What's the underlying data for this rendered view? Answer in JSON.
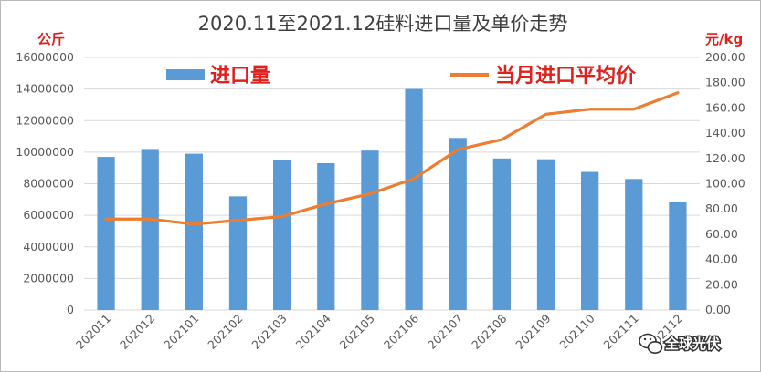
{
  "chart_data": {
    "type": "bar",
    "title": "2020.11至2021.12硅料进口量及单价走势",
    "categories": [
      "202011",
      "202012",
      "202101",
      "202102",
      "202103",
      "202104",
      "202105",
      "202106",
      "202107",
      "202108",
      "202109",
      "202110",
      "202111",
      "202112"
    ],
    "series": [
      {
        "name": "进口量",
        "type": "bar",
        "axis": "left",
        "color": "#5b9bd5",
        "values": [
          9700000,
          10200000,
          9900000,
          7200000,
          9500000,
          9300000,
          10100000,
          14000000,
          10900000,
          9600000,
          9550000,
          8750000,
          8300000,
          6850000
        ]
      },
      {
        "name": "当月进口平均价",
        "type": "line",
        "axis": "right",
        "color": "#ed7d31",
        "values": [
          72,
          72,
          68,
          71,
          74,
          84,
          92,
          104,
          127,
          135,
          155,
          159,
          159,
          172
        ]
      }
    ],
    "y_left": {
      "unit": "公斤",
      "ylim": [
        0,
        16000000
      ],
      "ticks": [
        "0",
        "2000000",
        "4000000",
        "6000000",
        "8000000",
        "10000000",
        "12000000",
        "14000000",
        "16000000"
      ]
    },
    "y_right": {
      "unit": "元/kg",
      "ylim": [
        0,
        200
      ],
      "ticks": [
        "0.00",
        "20.00",
        "40.00",
        "60.00",
        "80.00",
        "100.00",
        "120.00",
        "140.00",
        "160.00",
        "180.00",
        "200.00"
      ]
    },
    "grid": true,
    "legend_position": "top"
  },
  "watermark": {
    "icon": "wechat-icon",
    "text": "全球光伏"
  }
}
